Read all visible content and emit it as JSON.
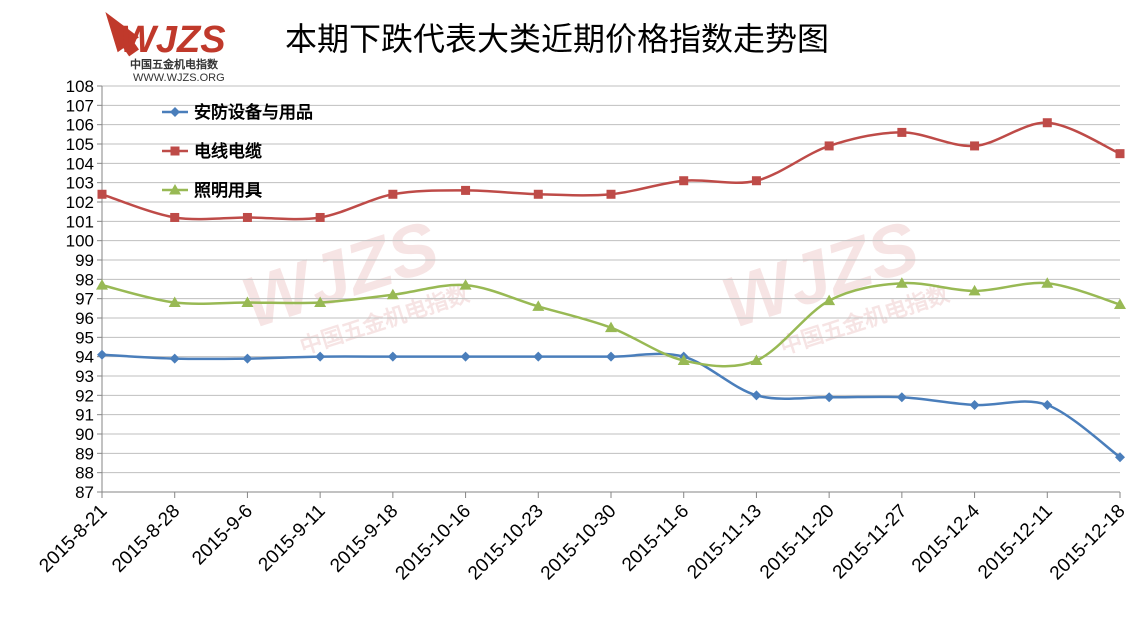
{
  "logo": {
    "mark": "WJZS",
    "name": "中国五金机电指数",
    "url": "WWW.WJZS.ORG",
    "color": "#c0392b"
  },
  "chart_data": {
    "type": "line",
    "title": "本期下跌代表大类近期价格指数走势图",
    "xlabel": "",
    "ylabel": "",
    "ylim": [
      87,
      108
    ],
    "ytick_step": 1,
    "grid": true,
    "legend_position": "top-left",
    "categories": [
      "2015-8-21",
      "2015-8-28",
      "2015-9-6",
      "2015-9-11",
      "2015-9-18",
      "2015-10-16",
      "2015-10-23",
      "2015-10-30",
      "2015-11-6",
      "2015-11-13",
      "2015-11-20",
      "2015-11-27",
      "2015-12-4",
      "2015-12-11",
      "2015-12-18"
    ],
    "series": [
      {
        "name": "安防设备与用品",
        "color": "#4a7ebb",
        "marker": "diamond",
        "values": [
          94.1,
          93.9,
          93.9,
          94.0,
          94.0,
          94.0,
          94.0,
          94.0,
          94.0,
          92.0,
          91.9,
          91.9,
          91.5,
          91.5,
          88.8
        ]
      },
      {
        "name": "电线电缆",
        "color": "#be4b48",
        "marker": "square",
        "values": [
          102.4,
          101.2,
          101.2,
          101.2,
          102.4,
          102.6,
          102.4,
          102.4,
          103.1,
          103.1,
          104.9,
          105.6,
          104.9,
          106.1,
          104.5
        ]
      },
      {
        "name": "照明用具",
        "color": "#98b954",
        "marker": "triangle",
        "values": [
          97.7,
          96.8,
          96.8,
          96.8,
          97.2,
          97.7,
          96.6,
          95.5,
          93.8,
          93.8,
          96.9,
          97.8,
          97.4,
          97.8,
          96.7
        ]
      }
    ]
  }
}
